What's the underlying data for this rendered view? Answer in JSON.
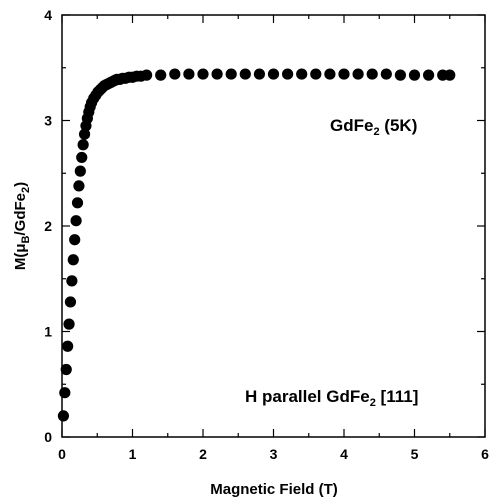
{
  "chart_data": {
    "type": "scatter",
    "title": "",
    "xlabel": "Magnetic Field (T)",
    "ylabel": {
      "main": "M(",
      "mu": "μ",
      "mu_sub": "B",
      "mid": "/GdFe",
      "sub": "2",
      "end": ")"
    },
    "xlim": [
      0,
      6
    ],
    "ylim": [
      0,
      4
    ],
    "xticks": [
      "0",
      "1",
      "2",
      "3",
      "4",
      "5",
      "6"
    ],
    "yticks": [
      "0",
      "1",
      "2",
      "3",
      "4"
    ],
    "grid": false,
    "legend": "none",
    "marker_color": "#000000",
    "series": [
      {
        "x": [
          0.02,
          0.04,
          0.06,
          0.08,
          0.1,
          0.12,
          0.14,
          0.16,
          0.18,
          0.2,
          0.22,
          0.24,
          0.26,
          0.28,
          0.3,
          0.32,
          0.34,
          0.36,
          0.38,
          0.4,
          0.42,
          0.45,
          0.48,
          0.51,
          0.54,
          0.57,
          0.6,
          0.63,
          0.66,
          0.69,
          0.72,
          0.75,
          0.78,
          0.82,
          0.86,
          0.9,
          0.95,
          1.0,
          1.06,
          1.12,
          1.2,
          1.4,
          1.6,
          1.8,
          2.0,
          2.2,
          2.4,
          2.6,
          2.8,
          3.0,
          3.2,
          3.4,
          3.6,
          3.8,
          4.0,
          4.2,
          4.4,
          4.6,
          4.8,
          5.0,
          5.2,
          5.4,
          5.5
        ],
        "y": [
          0.2,
          0.42,
          0.64,
          0.86,
          1.07,
          1.28,
          1.48,
          1.68,
          1.87,
          2.05,
          2.22,
          2.38,
          2.52,
          2.65,
          2.77,
          2.87,
          2.95,
          3.02,
          3.08,
          3.13,
          3.17,
          3.21,
          3.24,
          3.27,
          3.29,
          3.31,
          3.33,
          3.34,
          3.35,
          3.36,
          3.37,
          3.38,
          3.39,
          3.39,
          3.4,
          3.4,
          3.41,
          3.41,
          3.42,
          3.42,
          3.43,
          3.43,
          3.44,
          3.44,
          3.44,
          3.44,
          3.44,
          3.44,
          3.44,
          3.44,
          3.44,
          3.44,
          3.44,
          3.44,
          3.44,
          3.44,
          3.44,
          3.44,
          3.43,
          3.43,
          3.43,
          3.43,
          3.43
        ]
      }
    ],
    "annotations": [
      {
        "pre": "GdFe",
        "sub": "2",
        "post": " (5K)"
      },
      {
        "pre": "H parallel GdFe",
        "sub": "2",
        "post": " [111]"
      }
    ]
  }
}
